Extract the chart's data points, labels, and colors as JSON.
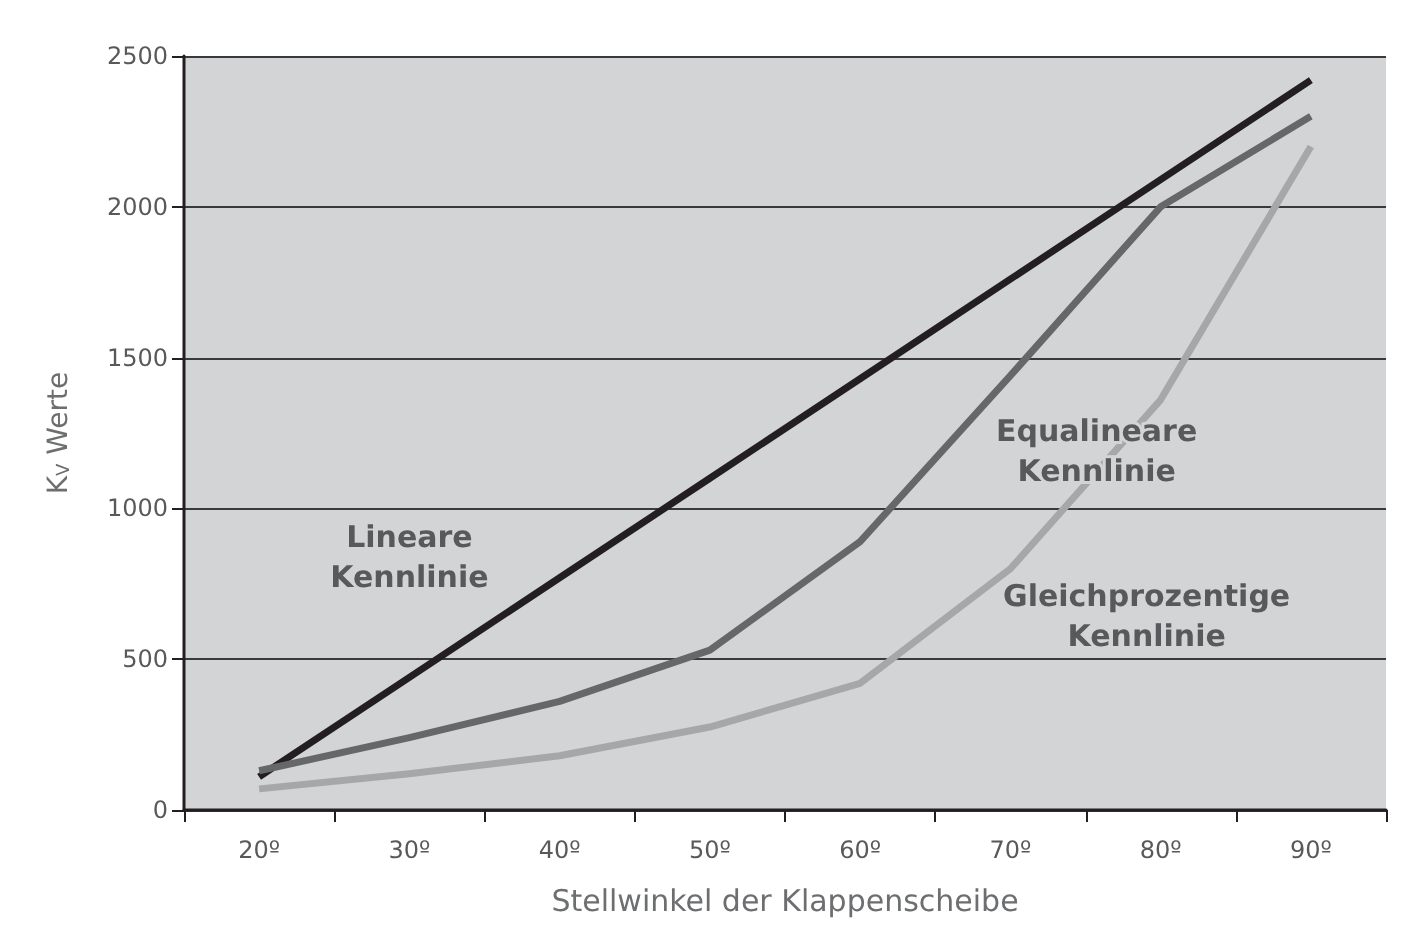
{
  "chart_data": {
    "type": "line",
    "xlabel": "Stellwinkel der Klappenscheibe",
    "ylabel": "K$_{V}$ Werte",
    "categories": [
      "20º",
      "30º",
      "40º",
      "50º",
      "60º",
      "70º",
      "80º",
      "90º"
    ],
    "series": [
      {
        "name": "Lineare\nKennlinie",
        "color": "#231f20",
        "values": [
          110,
          440,
          770,
          1100,
          1430,
          1760,
          2090,
          2420
        ]
      },
      {
        "name": "Equalineare\nKennlinie",
        "color": "#666769",
        "values": [
          130,
          240,
          360,
          530,
          890,
          1440,
          2000,
          2300
        ]
      },
      {
        "name": "Gleichprozentige\nKennlinie",
        "color": "#a6a7a9",
        "values": [
          70,
          120,
          180,
          275,
          420,
          800,
          1360,
          2200
        ]
      }
    ],
    "ylim": [
      0,
      2500
    ],
    "yticks": [
      0,
      500,
      1000,
      1500,
      2000,
      2500
    ],
    "grid": "y",
    "marker": "none",
    "line_style": "solid"
  }
}
